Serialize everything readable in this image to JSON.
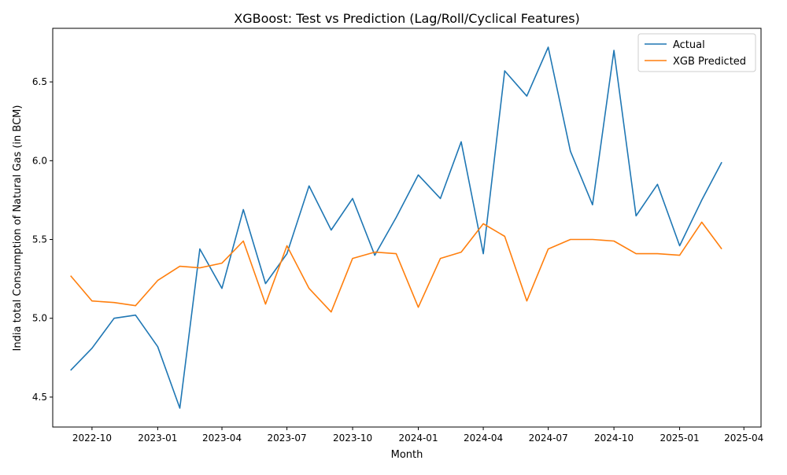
{
  "chart_data": {
    "type": "line",
    "title": "XGBoost: Test vs Prediction (Lag/Roll/Cyclical Features)",
    "xlabel": "Month",
    "ylabel": "India total Consumption of Natural Gas (in BCM)",
    "x": [
      "2022-09-01",
      "2022-10-01",
      "2022-11-01",
      "2022-12-01",
      "2023-01-01",
      "2023-02-01",
      "2023-03-01",
      "2023-04-01",
      "2023-05-01",
      "2023-06-01",
      "2023-07-01",
      "2023-08-01",
      "2023-09-01",
      "2023-10-01",
      "2023-11-01",
      "2023-12-01",
      "2024-01-01",
      "2024-02-01",
      "2024-03-01",
      "2024-04-01",
      "2024-05-01",
      "2024-06-01",
      "2024-07-01",
      "2024-08-01",
      "2024-09-01",
      "2024-10-01",
      "2024-11-01",
      "2024-12-01",
      "2025-01-01",
      "2025-02-01",
      "2025-03-01"
    ],
    "series": [
      {
        "name": "Actual",
        "color": "#1f77b4",
        "values": [
          4.67,
          4.81,
          5.0,
          5.02,
          4.82,
          4.43,
          5.44,
          5.19,
          5.69,
          5.22,
          5.41,
          5.84,
          5.56,
          5.76,
          5.4,
          5.64,
          5.91,
          5.76,
          6.12,
          5.41,
          6.57,
          6.41,
          6.72,
          6.06,
          5.72,
          6.7,
          5.65,
          5.85,
          5.46,
          5.75,
          5.99
        ]
      },
      {
        "name": "XGB Predicted",
        "color": "#ff7f0e",
        "values": [
          5.27,
          5.11,
          5.1,
          5.08,
          5.24,
          5.33,
          5.32,
          5.35,
          5.49,
          5.09,
          5.46,
          5.19,
          5.04,
          5.38,
          5.42,
          5.41,
          5.07,
          5.38,
          5.42,
          5.6,
          5.52,
          5.11,
          5.44,
          5.5,
          5.5,
          5.49,
          5.41,
          5.41,
          5.4,
          5.61,
          5.44
        ]
      }
    ],
    "x_ticks": [
      {
        "label": "2022-10",
        "date": "2022-10-01"
      },
      {
        "label": "2023-01",
        "date": "2023-01-01"
      },
      {
        "label": "2023-04",
        "date": "2023-04-01"
      },
      {
        "label": "2023-07",
        "date": "2023-07-01"
      },
      {
        "label": "2023-10",
        "date": "2023-10-01"
      },
      {
        "label": "2024-01",
        "date": "2024-01-01"
      },
      {
        "label": "2024-04",
        "date": "2024-04-01"
      },
      {
        "label": "2024-07",
        "date": "2024-07-01"
      },
      {
        "label": "2024-10",
        "date": "2024-10-01"
      },
      {
        "label": "2025-01",
        "date": "2025-01-01"
      },
      {
        "label": "2025-04",
        "date": "2025-04-01"
      }
    ],
    "y_ticks": [
      {
        "label": "4.5",
        "value": 4.5
      },
      {
        "label": "5.0",
        "value": 5.0
      },
      {
        "label": "5.5",
        "value": 5.5
      },
      {
        "label": "6.0",
        "value": 6.0
      },
      {
        "label": "6.5",
        "value": 6.5
      }
    ],
    "xlim": [
      "2022-08-07",
      "2025-04-25"
    ],
    "ylim": [
      4.31,
      6.84
    ],
    "grid": false,
    "legend_position": "top-right"
  }
}
